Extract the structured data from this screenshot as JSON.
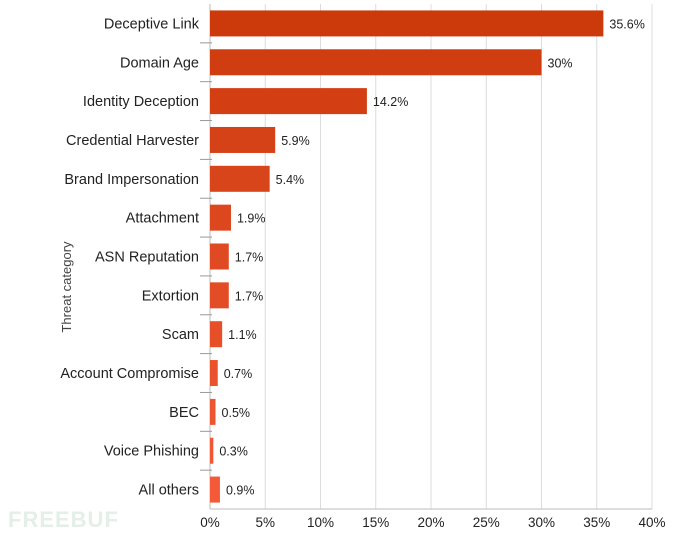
{
  "watermark": "FREEBUF",
  "chart_data": {
    "type": "bar",
    "orientation": "horizontal",
    "title": "",
    "xlabel": "",
    "ylabel": "Threat category",
    "xlim": [
      0,
      40
    ],
    "xticks": [
      "0%",
      "5%",
      "10%",
      "15%",
      "20%",
      "25%",
      "30%",
      "35%",
      "40%"
    ],
    "grid": true,
    "categories": [
      "Deceptive Link",
      "Domain Age",
      "Identity Deception",
      "Credential Harvester",
      "Brand Impersonation",
      "Attachment",
      "ASN Reputation",
      "Extortion",
      "Scam",
      "Account Compromise",
      "BEC",
      "Voice Phishing",
      "All others"
    ],
    "values": [
      35.6,
      30,
      14.2,
      5.9,
      5.4,
      1.9,
      1.7,
      1.7,
      1.1,
      0.7,
      0.5,
      0.3,
      0.9
    ],
    "value_labels": [
      "35.6%",
      "30%",
      "14.2%",
      "5.9%",
      "5.4%",
      "1.9%",
      "1.7%",
      "1.7%",
      "1.1%",
      "0.7%",
      "0.5%",
      "0.3%",
      "0.9%"
    ],
    "color_start": "#cc3a0c",
    "color_end": "#f45a38"
  }
}
